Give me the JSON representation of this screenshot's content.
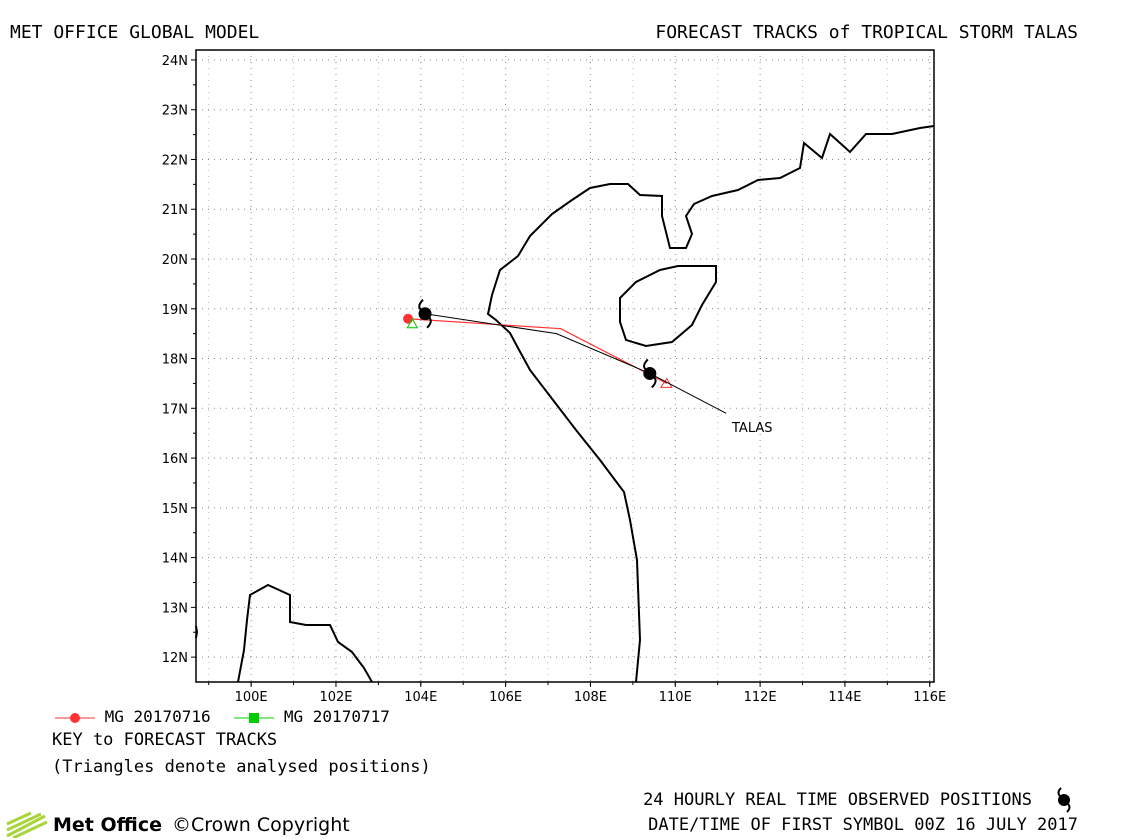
{
  "header": {
    "left_title": "MET OFFICE GLOBAL MODEL",
    "right_title": "FORECAST TRACKS of TROPICAL STORM TALAS"
  },
  "map": {
    "lat_labels": [
      "12N",
      "13N",
      "14N",
      "15N",
      "16N",
      "17N",
      "18N",
      "19N",
      "20N",
      "21N",
      "22N",
      "23N",
      "24N"
    ],
    "lon_labels": [
      "100E",
      "102E",
      "104E",
      "106E",
      "108E",
      "110E",
      "112E",
      "114E",
      "116E"
    ],
    "lon_range": [
      98.7,
      116.1
    ],
    "lat_range": [
      11.5,
      24.2
    ],
    "storm_label": "TALAS",
    "colors": {
      "track_0716": "#ff3333",
      "track_0717": "#00cc00",
      "observed": "#000000",
      "coast": "#000000"
    },
    "observed_track": [
      [
        104.1,
        18.9
      ],
      [
        109.4,
        17.7
      ]
    ],
    "tracks": [
      {
        "name": "MG 20170716",
        "points": [
          [
            103.7,
            18.8
          ],
          [
            109.8,
            17.5
          ]
        ]
      },
      {
        "name": "MG 20170717",
        "points": [
          [
            103.8,
            18.7
          ]
        ]
      }
    ]
  },
  "legend": {
    "items": [
      {
        "label": "MG 20170716",
        "color": "#ff3333",
        "marker": "circle"
      },
      {
        "label": "MG 20170717",
        "color": "#00cc00",
        "marker": "square"
      }
    ],
    "key_title": "KEY to FORECAST TRACKS",
    "key_note": "(Triangles denote analysed positions)"
  },
  "footer": {
    "observed_label": "24 HOURLY REAL TIME OBSERVED POSITIONS",
    "date_label": "DATE/TIME OF FIRST SYMBOL 00Z 16 JULY 2017",
    "brand": "Met Office",
    "copyright": "©Crown Copyright"
  }
}
